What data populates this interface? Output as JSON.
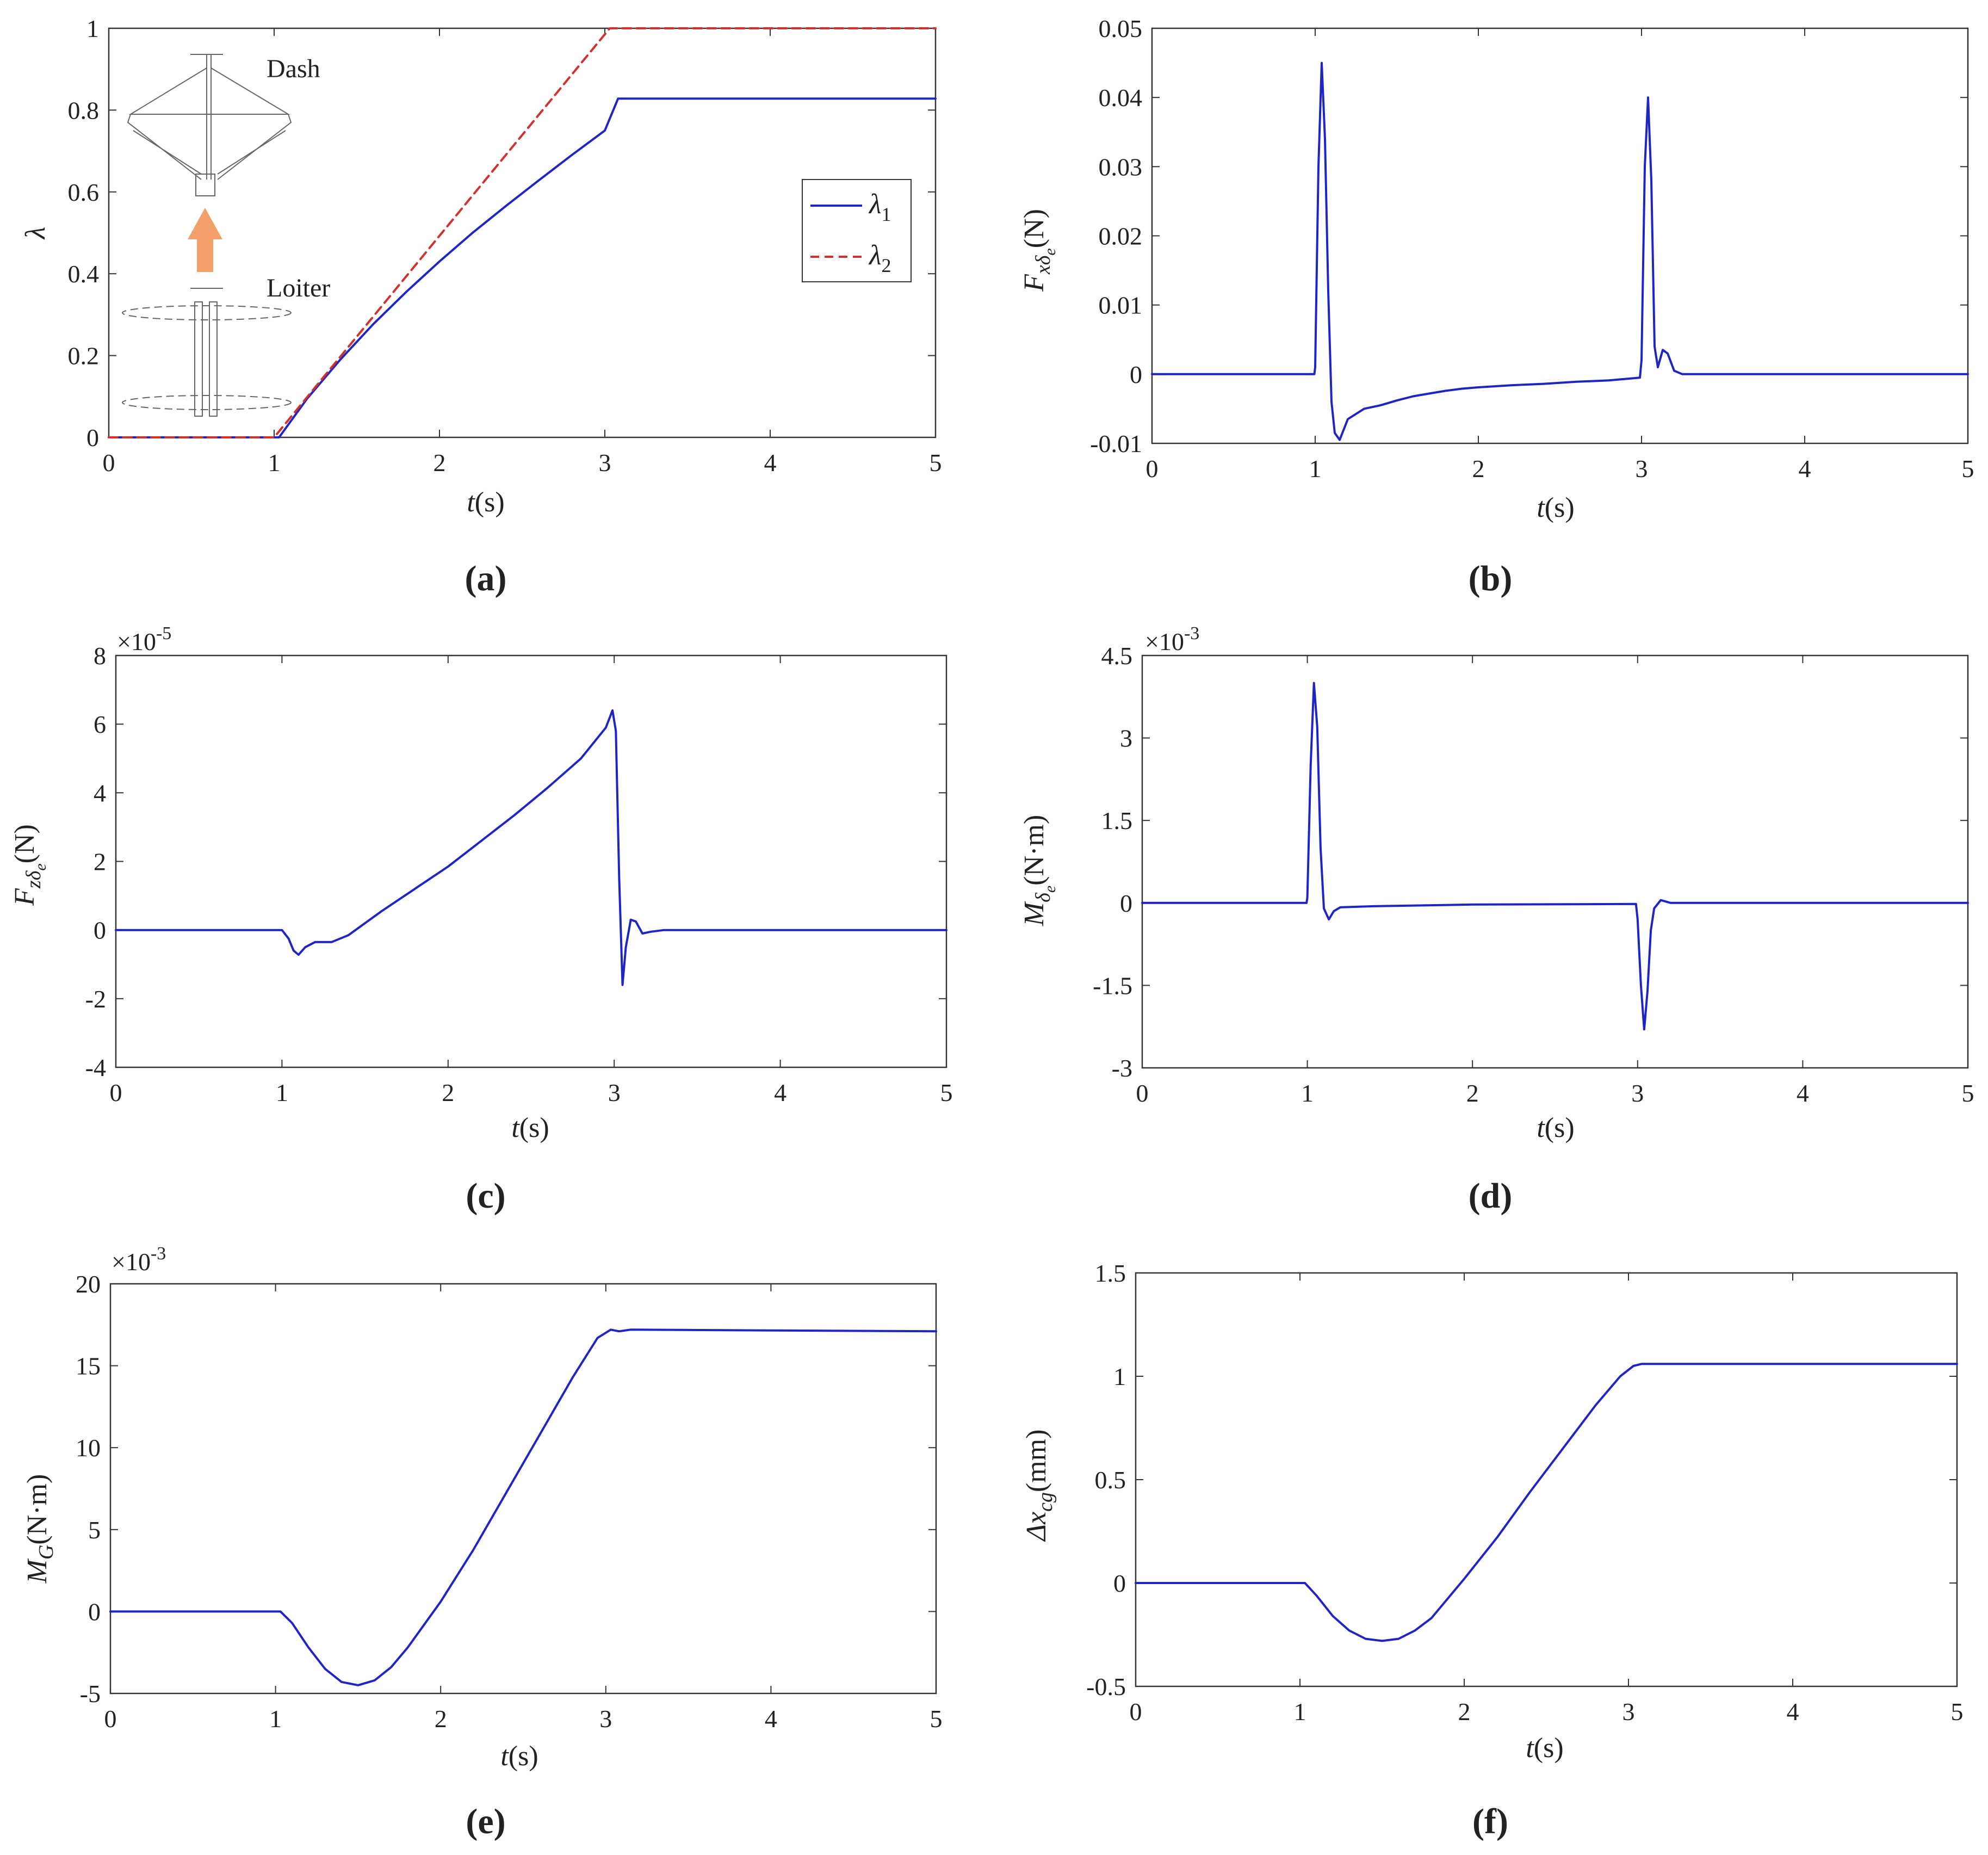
{
  "colors": {
    "primary_series": "#1f24c4",
    "secondary_series": "#d0312d",
    "arrow": "#f4a06b"
  },
  "panels": {
    "a": {
      "caption_text": "(a)",
      "ylabel": "λ",
      "xlabel_italic": "t",
      "xlabel_unit": "(s)",
      "legend": {
        "l1_base": "λ",
        "l1_sub": "1",
        "l2_base": "λ",
        "l2_sub": "2"
      },
      "illustration": {
        "dash_label": "Dash",
        "loiter_label": "Loiter",
        "icons": [
          "dash-configuration-drawing",
          "transition-arrow",
          "loiter-configuration-drawing"
        ]
      }
    },
    "b": {
      "caption_text": "(b)",
      "ylabel_base": "F",
      "ylabel_sub": "xδ",
      "ylabel_subsub": "e",
      "ylabel_unit": "(N)",
      "xlabel_italic": "t",
      "xlabel_unit": "(s)"
    },
    "c": {
      "caption_text": "(c)",
      "exp_prefix": "×10",
      "exp_power": "-5",
      "ylabel_base": "F",
      "ylabel_sub": "zδ",
      "ylabel_subsub": "e",
      "ylabel_unit": "(N)",
      "xlabel_italic": "t",
      "xlabel_unit": "(s)"
    },
    "d": {
      "caption_text": "(d)",
      "exp_prefix": "×10",
      "exp_power": "-3",
      "ylabel_base": "M",
      "ylabel_sub": "δ",
      "ylabel_subsub": "e",
      "ylabel_unit": "(N·m)",
      "xlabel_italic": "t",
      "xlabel_unit": "(s)"
    },
    "e": {
      "caption_text": "(e)",
      "exp_prefix": "×10",
      "exp_power": "-3",
      "ylabel_base": "M",
      "ylabel_sub": "G",
      "ylabel_unit": "(N·m)",
      "xlabel_italic": "t",
      "xlabel_unit": "(s)"
    },
    "f": {
      "caption_text": "(f)",
      "ylabel_base": "Δx",
      "ylabel_sub": "cg",
      "ylabel_unit": "(mm)",
      "xlabel_italic": "t",
      "xlabel_unit": "(s)"
    }
  },
  "chart_data": [
    {
      "id": "a",
      "type": "line",
      "xlabel": "t(s)",
      "ylabel": "λ",
      "xlim": [
        0,
        5
      ],
      "ylim": [
        0,
        1
      ],
      "xticks": [
        "0",
        "1",
        "2",
        "3",
        "4",
        "5"
      ],
      "yticks": [
        "0",
        "0.2",
        "0.4",
        "0.6",
        "0.8",
        "1"
      ],
      "series": [
        {
          "name": "λ1",
          "style": "solid",
          "x": [
            0,
            1.03,
            1.2,
            1.4,
            1.6,
            1.8,
            2.0,
            2.2,
            2.4,
            2.6,
            2.8,
            3.0,
            3.08,
            5.0
          ],
          "y": [
            0,
            0,
            0.095,
            0.19,
            0.277,
            0.356,
            0.43,
            0.5,
            0.565,
            0.628,
            0.69,
            0.75,
            0.828,
            0.828
          ]
        },
        {
          "name": "λ2",
          "style": "dashed",
          "x": [
            0,
            1.0,
            3.03,
            5.0
          ],
          "y": [
            0,
            0,
            1.0,
            1.0
          ]
        }
      ]
    },
    {
      "id": "b",
      "type": "line",
      "xlabel": "t(s)",
      "ylabel": "Fxδe(N)",
      "xlim": [
        0,
        5
      ],
      "ylim": [
        -0.01,
        0.05
      ],
      "xticks": [
        "0",
        "1",
        "2",
        "3",
        "4",
        "5"
      ],
      "yticks": [
        "-0.01",
        "0",
        "0.01",
        "0.02",
        "0.03",
        "0.04",
        "0.05"
      ],
      "series": [
        {
          "name": "Fxδe",
          "x": [
            0,
            0.995,
            1.0,
            1.02,
            1.04,
            1.06,
            1.08,
            1.1,
            1.12,
            1.15,
            1.2,
            1.3,
            1.4,
            1.5,
            1.6,
            1.7,
            1.8,
            1.9,
            2.0,
            2.2,
            2.4,
            2.6,
            2.8,
            2.99,
            3.0,
            3.02,
            3.04,
            3.06,
            3.08,
            3.1,
            3.13,
            3.16,
            3.2,
            3.25,
            5.0
          ],
          "y": [
            0,
            0,
            0.001,
            0.03,
            0.045,
            0.034,
            0.012,
            -0.004,
            -0.0085,
            -0.0095,
            -0.0065,
            -0.005,
            -0.0045,
            -0.0038,
            -0.0032,
            -0.0028,
            -0.0024,
            -0.0021,
            -0.0019,
            -0.0016,
            -0.0014,
            -0.0011,
            -0.0009,
            -0.0005,
            0.002,
            0.03,
            0.04,
            0.028,
            0.004,
            0.001,
            0.0035,
            0.003,
            0.0005,
            0,
            0
          ]
        }
      ]
    },
    {
      "id": "c",
      "type": "line",
      "xlabel": "t(s)",
      "ylabel": "Fzδe(N)",
      "scale": "×10^-5",
      "xlim": [
        0,
        5
      ],
      "ylim": [
        -4,
        8
      ],
      "xticks": [
        "0",
        "1",
        "2",
        "3",
        "4",
        "5"
      ],
      "yticks": [
        "-4",
        "-2",
        "0",
        "2",
        "4",
        "6",
        "8"
      ],
      "series": [
        {
          "name": "Fzδe",
          "x": [
            0,
            1.0,
            1.04,
            1.07,
            1.1,
            1.14,
            1.2,
            1.3,
            1.4,
            1.5,
            1.6,
            1.8,
            2.0,
            2.2,
            2.4,
            2.6,
            2.8,
            2.95,
            2.99,
            3.01,
            3.03,
            3.05,
            3.07,
            3.1,
            3.13,
            3.17,
            3.22,
            3.3,
            5.0
          ],
          "y": [
            0,
            0,
            -0.25,
            -0.6,
            -0.72,
            -0.5,
            -0.35,
            -0.35,
            -0.15,
            0.2,
            0.55,
            1.2,
            1.85,
            2.6,
            3.35,
            4.15,
            5.0,
            5.9,
            6.4,
            5.8,
            1.5,
            -1.6,
            -0.5,
            0.3,
            0.25,
            -0.1,
            -0.05,
            0,
            0
          ]
        }
      ]
    },
    {
      "id": "d",
      "type": "line",
      "xlabel": "t(s)",
      "ylabel": "Mδe(N·m)",
      "scale": "×10^-3",
      "xlim": [
        0,
        5
      ],
      "ylim": [
        -3,
        4.5
      ],
      "xticks": [
        "0",
        "1",
        "2",
        "3",
        "4",
        "5"
      ],
      "yticks": [
        "-3",
        "-1.5",
        "0",
        "1.5",
        "3",
        "4.5"
      ],
      "series": [
        {
          "name": "Mδe",
          "x": [
            0,
            0.995,
            1.0,
            1.02,
            1.04,
            1.06,
            1.08,
            1.1,
            1.13,
            1.16,
            1.2,
            1.4,
            2.0,
            2.99,
            3.0,
            3.02,
            3.04,
            3.06,
            3.08,
            3.1,
            3.14,
            3.2,
            5.0
          ],
          "y": [
            0,
            0,
            0.1,
            2.5,
            4.0,
            3.2,
            1.0,
            -0.1,
            -0.3,
            -0.15,
            -0.08,
            -0.06,
            -0.03,
            -0.02,
            -0.3,
            -1.5,
            -2.3,
            -1.6,
            -0.5,
            -0.1,
            0.05,
            0,
            0
          ]
        }
      ]
    },
    {
      "id": "e",
      "type": "line",
      "xlabel": "t(s)",
      "ylabel": "MG(N·m)",
      "scale": "×10^-3",
      "xlim": [
        0,
        5
      ],
      "ylim": [
        -5,
        20
      ],
      "xticks": [
        "0",
        "1",
        "2",
        "3",
        "4",
        "5"
      ],
      "yticks": [
        "-5",
        "0",
        "5",
        "10",
        "15",
        "20"
      ],
      "series": [
        {
          "name": "MG",
          "x": [
            0,
            1.03,
            1.1,
            1.2,
            1.3,
            1.4,
            1.5,
            1.6,
            1.7,
            1.8,
            2.0,
            2.2,
            2.4,
            2.6,
            2.8,
            2.95,
            3.03,
            3.08,
            3.15,
            5.0
          ],
          "y": [
            0,
            0,
            -0.7,
            -2.2,
            -3.5,
            -4.3,
            -4.5,
            -4.2,
            -3.4,
            -2.2,
            0.6,
            3.8,
            7.3,
            10.8,
            14.3,
            16.7,
            17.2,
            17.1,
            17.2,
            17.1
          ]
        }
      ]
    },
    {
      "id": "f",
      "type": "line",
      "xlabel": "t(s)",
      "ylabel": "Δxcg(mm)",
      "xlim": [
        0,
        5
      ],
      "ylim": [
        -0.5,
        1.5
      ],
      "xticks": [
        "0",
        "1",
        "2",
        "3",
        "4",
        "5"
      ],
      "yticks": [
        "-0.5",
        "0",
        "0.5",
        "1",
        "1.5"
      ],
      "series": [
        {
          "name": "Δxcg",
          "x": [
            0,
            1.03,
            1.1,
            1.2,
            1.3,
            1.4,
            1.5,
            1.6,
            1.7,
            1.8,
            2.0,
            2.2,
            2.4,
            2.6,
            2.8,
            2.95,
            3.03,
            3.08,
            5.0
          ],
          "y": [
            0,
            0,
            -0.06,
            -0.16,
            -0.23,
            -0.27,
            -0.28,
            -0.27,
            -0.23,
            -0.17,
            0.02,
            0.22,
            0.44,
            0.65,
            0.86,
            1.0,
            1.05,
            1.06,
            1.06
          ]
        }
      ]
    }
  ]
}
